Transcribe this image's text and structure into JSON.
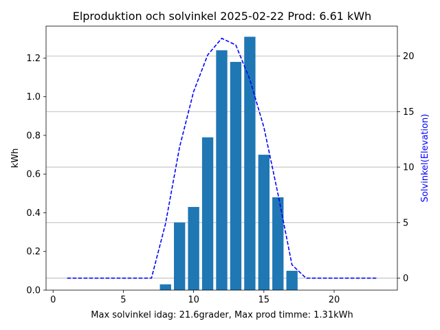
{
  "chart_data": {
    "type": "bar",
    "title": "Elproduktion och solvinkel 2025-02-22 Prod: 6.61 kWh",
    "xlabel": "Max solvinkel idag: 21.6grader, Max prod timme: 1.31kWh",
    "ylabel": "kWh",
    "y2label": "Solvinkel(Elevation)",
    "xlim": [
      -0.5,
      24.5
    ],
    "ylim": [
      0,
      1.365
    ],
    "y2lim": [
      -1.08,
      22.7
    ],
    "xticks": [
      "0",
      "5",
      "10",
      "15",
      "20"
    ],
    "yticks": [
      "0.0",
      "0.2",
      "0.4",
      "0.6",
      "0.8",
      "1.0",
      "1.2"
    ],
    "y2ticks": [
      "0",
      "5",
      "10",
      "15",
      "20"
    ],
    "grid": "horizontal lines on secondary axis",
    "series": [
      {
        "kind": "bar",
        "axis": "left",
        "color": "#1f77b4",
        "x": [
          8,
          9,
          10,
          11,
          12,
          13,
          14,
          15,
          16,
          17
        ],
        "values": [
          0.03,
          0.35,
          0.43,
          0.79,
          1.24,
          1.18,
          1.31,
          0.7,
          0.48,
          0.1
        ]
      },
      {
        "kind": "line",
        "axis": "right",
        "style": "dashed",
        "color": "#0000ff",
        "x": [
          1,
          2,
          3,
          4,
          5,
          6,
          7,
          8,
          9,
          10,
          11,
          12,
          13,
          14,
          15,
          16,
          17,
          18,
          19,
          20,
          21,
          22,
          23
        ],
        "values": [
          0,
          0,
          0,
          0,
          0,
          0,
          0,
          4.9,
          11.8,
          16.8,
          20.1,
          21.6,
          21.0,
          17.9,
          13.6,
          7.6,
          1.2,
          0,
          0,
          0,
          0,
          0,
          0
        ]
      }
    ]
  }
}
